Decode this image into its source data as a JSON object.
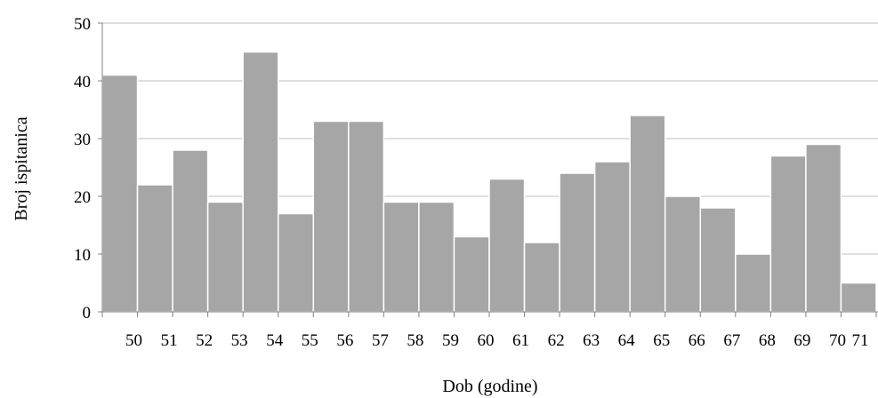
{
  "chart_data": {
    "type": "bar",
    "categories": [
      "50",
      "51",
      "52",
      "53",
      "54",
      "55",
      "56",
      "57",
      "58",
      "59",
      "60",
      "61",
      "62",
      "63",
      "64",
      "65",
      "66",
      "67",
      "68",
      "69",
      "70",
      "71"
    ],
    "values": [
      41,
      22,
      28,
      19,
      45,
      17,
      33,
      33,
      19,
      19,
      13,
      23,
      12,
      24,
      26,
      34,
      20,
      18,
      10,
      27,
      29,
      5
    ],
    "xlabel": "Dob (godine)",
    "ylabel": "Broj ispitanica",
    "ylim": [
      0,
      50
    ],
    "yticks": [
      0,
      10,
      20,
      30,
      40,
      50
    ],
    "grid": true,
    "bar_color": "#a6a6a6",
    "gridline_color": "#bfbfbf"
  }
}
